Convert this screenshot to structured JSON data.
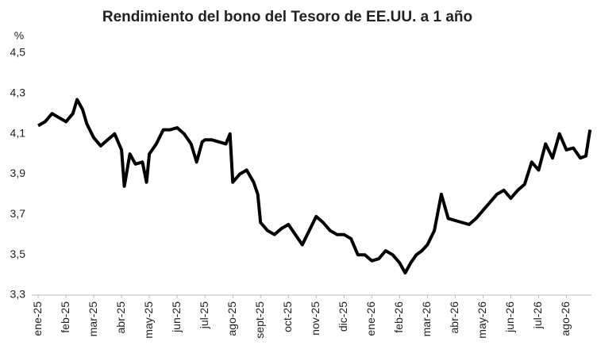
{
  "chart_data": {
    "type": "line",
    "title": "Rendimiento del bono del Tesoro de EE.UU. a 1 año",
    "y_label": "%",
    "color": "#000000",
    "x": [
      0,
      0.25,
      0.5,
      0.75,
      1,
      1.25,
      1.4,
      1.6,
      1.75,
      2,
      2.25,
      2.5,
      2.75,
      3,
      3.1,
      3.3,
      3.5,
      3.75,
      3.9,
      4,
      4.25,
      4.5,
      4.75,
      5,
      5.25,
      5.5,
      5.7,
      5.9,
      6,
      6.25,
      6.5,
      6.75,
      6.9,
      7,
      7.25,
      7.5,
      7.75,
      7.9,
      8,
      8.25,
      8.5,
      8.75,
      9,
      9.25,
      9.5,
      9.75,
      10,
      10.25,
      10.5,
      10.75,
      11,
      11.25,
      11.5,
      11.75,
      12,
      12.25,
      12.5,
      12.75,
      13,
      13.2,
      13.4,
      13.6,
      13.8,
      14,
      14.25,
      14.5,
      14.75,
      15,
      15.25,
      15.5,
      15.75,
      16,
      16.25,
      16.5,
      16.75,
      17,
      17.25,
      17.5,
      17.75,
      18,
      18.25,
      18.5,
      18.75,
      19,
      19.25,
      19.5,
      19.7,
      19.85
    ],
    "values": [
      4.14,
      4.16,
      4.2,
      4.18,
      4.16,
      4.2,
      4.27,
      4.22,
      4.15,
      4.08,
      4.04,
      4.07,
      4.1,
      4.02,
      3.84,
      4.0,
      3.95,
      3.96,
      3.86,
      4.0,
      4.05,
      4.12,
      4.12,
      4.13,
      4.1,
      4.05,
      3.96,
      4.06,
      4.07,
      4.07,
      4.06,
      4.05,
      4.1,
      3.86,
      3.9,
      3.92,
      3.86,
      3.8,
      3.66,
      3.62,
      3.6,
      3.63,
      3.65,
      3.6,
      3.55,
      3.62,
      3.69,
      3.66,
      3.62,
      3.6,
      3.6,
      3.58,
      3.5,
      3.5,
      3.47,
      3.48,
      3.52,
      3.5,
      3.46,
      3.41,
      3.46,
      3.5,
      3.52,
      3.55,
      3.62,
      3.8,
      3.68,
      3.67,
      3.66,
      3.65,
      3.68,
      3.72,
      3.76,
      3.8,
      3.82,
      3.78,
      3.82,
      3.85,
      3.96,
      3.92,
      4.05,
      3.98,
      4.1,
      4.02,
      4.03,
      3.98,
      3.99,
      4.12
    ],
    "xlim": [
      -0.23,
      19.9
    ],
    "xticks": [
      {
        "value": 0,
        "label": "ene-25"
      },
      {
        "value": 1,
        "label": "feb-25"
      },
      {
        "value": 2,
        "label": "mar-25"
      },
      {
        "value": 3,
        "label": "abr-25"
      },
      {
        "value": 4,
        "label": "may-25"
      },
      {
        "value": 5,
        "label": "jun-25"
      },
      {
        "value": 6,
        "label": "jul-25"
      },
      {
        "value": 7,
        "label": "ago-25"
      },
      {
        "value": 8,
        "label": "sept-25"
      },
      {
        "value": 9,
        "label": "oct-25"
      },
      {
        "value": 10,
        "label": "nov-25"
      },
      {
        "value": 11,
        "label": "dic-25"
      },
      {
        "value": 12,
        "label": "ene-26"
      },
      {
        "value": 13,
        "label": "feb-26"
      },
      {
        "value": 14,
        "label": "mar-26"
      },
      {
        "value": 15,
        "label": "abr-26"
      },
      {
        "value": 16,
        "label": "may-26"
      },
      {
        "value": 17,
        "label": "jun-26"
      },
      {
        "value": 18,
        "label": "jul-26"
      },
      {
        "value": 19,
        "label": "ago-26"
      }
    ],
    "ylim": [
      3.3,
      4.5
    ],
    "yticks": [
      {
        "value": 3.3,
        "label": "3,3"
      },
      {
        "value": 3.5,
        "label": "3,5"
      },
      {
        "value": 3.7,
        "label": "3,7"
      },
      {
        "value": 3.9,
        "label": "3,9"
      },
      {
        "value": 4.1,
        "label": "4,1"
      },
      {
        "value": 4.3,
        "label": "4,3"
      },
      {
        "value": 4.5,
        "label": "4,5"
      }
    ],
    "grid": false
  }
}
